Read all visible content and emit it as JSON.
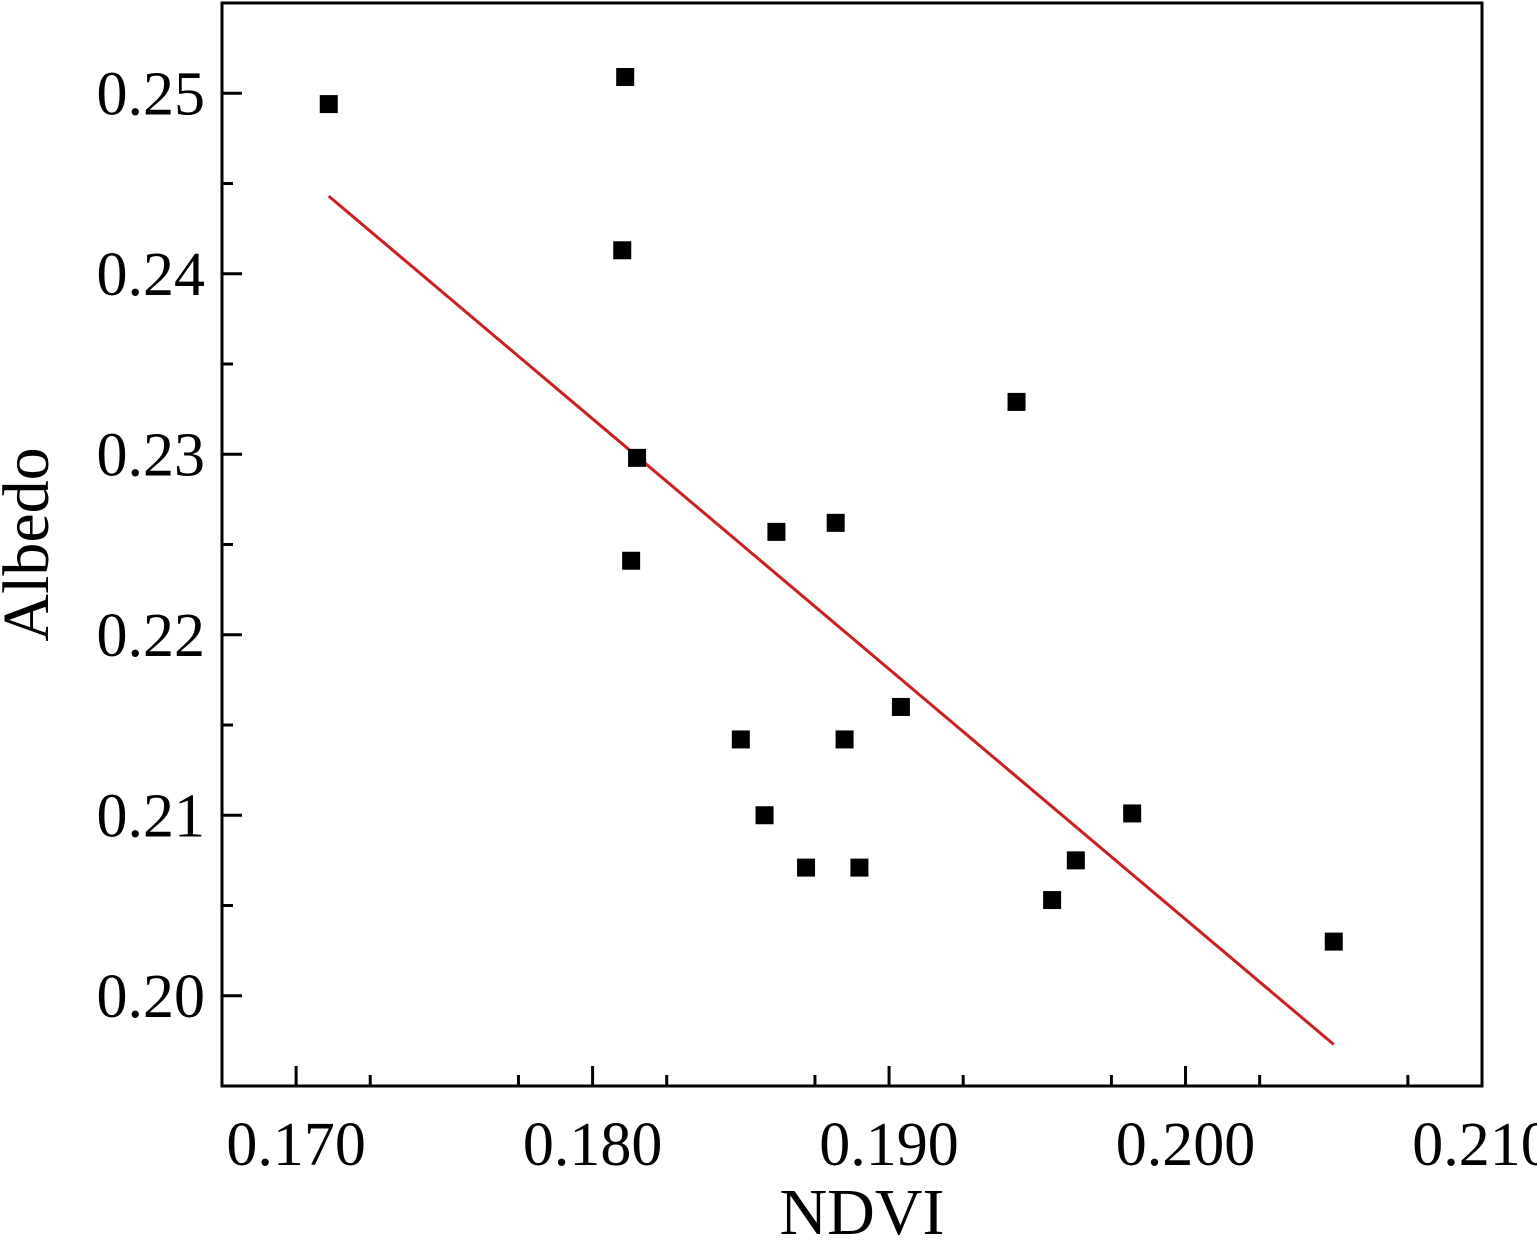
{
  "chart_data": {
    "type": "scatter",
    "xlabel": "NDVI",
    "ylabel": "Albedo",
    "xlim": [
      0.1675,
      0.21
    ],
    "ylim": [
      0.195,
      0.255
    ],
    "x_ticks": [
      "0.170",
      "0.180",
      "0.190",
      "0.200",
      "0.210"
    ],
    "y_ticks": [
      "0.20",
      "0.21",
      "0.22",
      "0.23",
      "0.24",
      "0.25"
    ],
    "x_tick_values": [
      0.17,
      0.18,
      0.19,
      0.2,
      0.21
    ],
    "y_tick_values": [
      0.2,
      0.21,
      0.22,
      0.23,
      0.24,
      0.25
    ],
    "x_minor_ticks": [
      0.1725,
      0.1775,
      0.1825,
      0.1875,
      0.1925,
      0.1975,
      0.2025,
      0.2075
    ],
    "y_minor_ticks": [
      0.205,
      0.215,
      0.225,
      0.235,
      0.245
    ],
    "grid": false,
    "points": [
      {
        "x": 0.1711,
        "y": 0.2494
      },
      {
        "x": 0.1811,
        "y": 0.2509
      },
      {
        "x": 0.181,
        "y": 0.2413
      },
      {
        "x": 0.1815,
        "y": 0.2298
      },
      {
        "x": 0.1813,
        "y": 0.2241
      },
      {
        "x": 0.185,
        "y": 0.2142
      },
      {
        "x": 0.1862,
        "y": 0.2257
      },
      {
        "x": 0.1858,
        "y": 0.21
      },
      {
        "x": 0.1872,
        "y": 0.2071
      },
      {
        "x": 0.1882,
        "y": 0.2262
      },
      {
        "x": 0.1885,
        "y": 0.2142
      },
      {
        "x": 0.189,
        "y": 0.2071
      },
      {
        "x": 0.1904,
        "y": 0.216
      },
      {
        "x": 0.1943,
        "y": 0.2329
      },
      {
        "x": 0.1955,
        "y": 0.2053
      },
      {
        "x": 0.1963,
        "y": 0.2075
      },
      {
        "x": 0.1982,
        "y": 0.2101
      },
      {
        "x": 0.205,
        "y": 0.203
      }
    ],
    "fit_line": {
      "x": [
        0.1711,
        0.205
      ],
      "y": [
        0.2443,
        0.1973
      ]
    },
    "colors": {
      "points": "#000000",
      "fit_line": "#cc1f1f",
      "axes": "#000000"
    }
  }
}
